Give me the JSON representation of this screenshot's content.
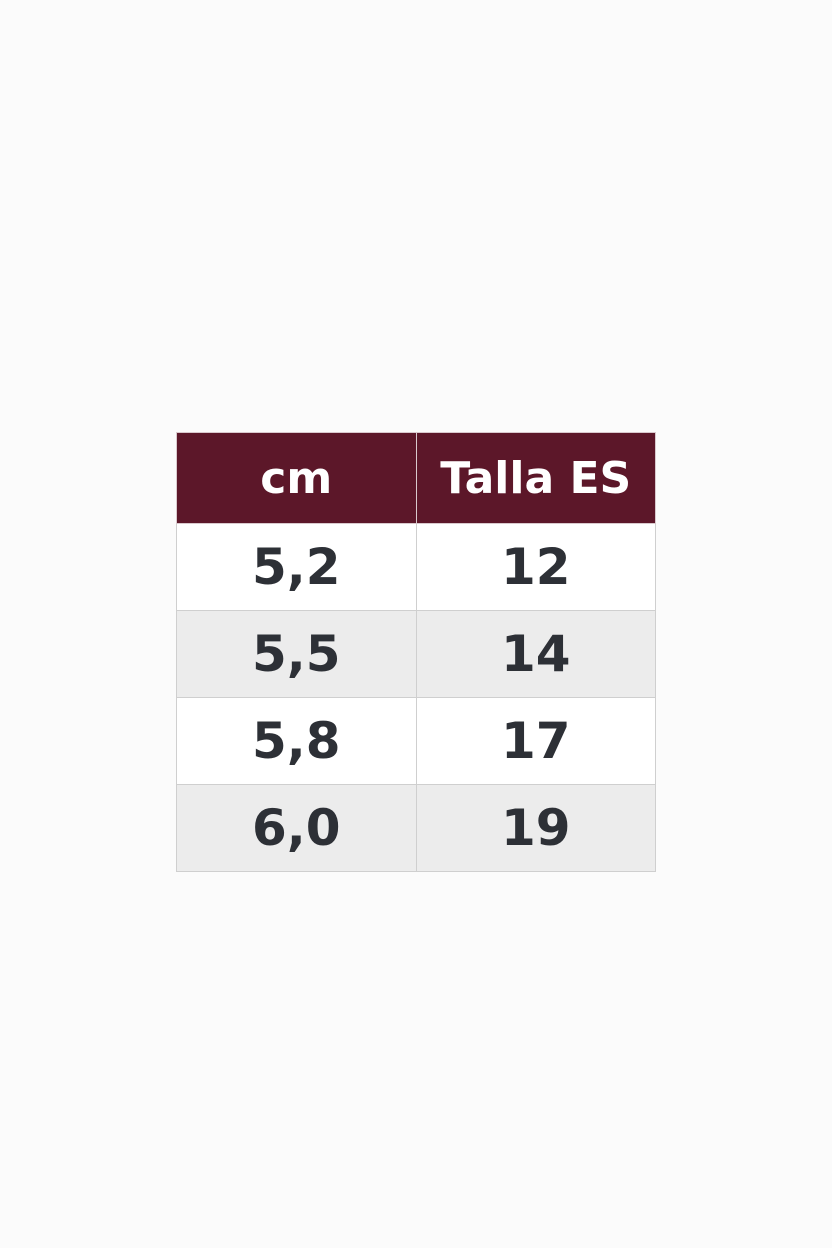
{
  "table": {
    "header": [
      "cm",
      "Talla ES"
    ],
    "rows": [
      [
        "5,2",
        "12"
      ],
      [
        "5,5",
        "14"
      ],
      [
        "5,8",
        "17"
      ],
      [
        "6,0",
        "19"
      ]
    ]
  }
}
